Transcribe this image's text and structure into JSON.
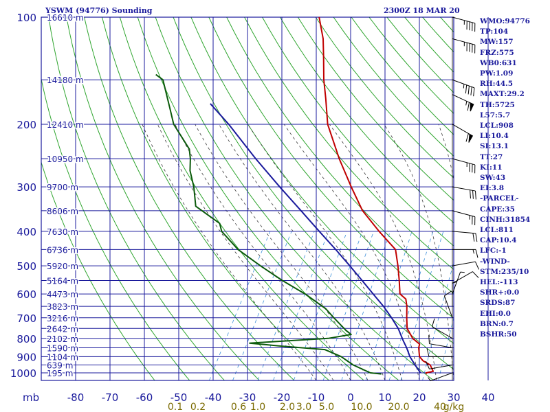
{
  "header": {
    "station": "YSWM (94776) Sounding",
    "time": "2300Z 18 MAR 20"
  },
  "stats": [
    "WMO:94776",
    "TP:104",
    "MW:157",
    "FRZ:575",
    "WB0:631",
    "PW:1.09",
    "RH:44.5",
    "MAXT:29.2",
    "TH:5725",
    "L57:5.7",
    "LCL:908",
    "LI:10.4",
    "SI:13.1",
    "TT:27",
    "KI:11",
    "SW:43",
    "EI:3.8",
    "-PARCEL-",
    "CAPE:35",
    "CINH:31854",
    "LCL:811",
    "CAP:10.4",
    "LFC:-1",
    "-WIND-",
    "STM:235/10",
    "HEL:-113",
    "SHR+:0.0",
    "SRDS:87",
    "EHI:0.0",
    "BRN:0.7",
    "BSHR:50"
  ],
  "colors": {
    "grid": "#1a1a9c",
    "dry_adiabat": "#2fa52f",
    "moist_adiabat": "#3a3a3a",
    "mixing_ratio": "#3b8fd9",
    "temperature": "#c00000",
    "dewpoint": "#0b5a0b",
    "parcel": "#1a1a9c",
    "wind": "#000000",
    "axis_label": "#1a1a9c",
    "mixing_label": "#7a6a00"
  },
  "chart_data": {
    "type": "line",
    "title": "YSWM (94776) Sounding",
    "xlabel": "",
    "ylabel": "mb",
    "x_ticks": [
      -80,
      -70,
      -60,
      -50,
      -40,
      -30,
      -20,
      -10,
      0,
      10,
      20,
      30,
      40
    ],
    "y_ticks": [
      100,
      200,
      300,
      400,
      500,
      600,
      700,
      800,
      900,
      1000
    ],
    "x_axis_unit_label": "mb",
    "mixing_ratio_labels": [
      "0.1",
      "0.2",
      "0.6",
      "1.0",
      "2.0",
      "3.0",
      "5.0",
      "10.0",
      "20.0",
      "40",
      "g/kg"
    ],
    "height_labels": [
      {
        "p": 100,
        "label": "16610 m"
      },
      {
        "p": 150,
        "label": "14180 m"
      },
      {
        "p": 200,
        "label": "12410 m"
      },
      {
        "p": 250,
        "label": "10950 m"
      },
      {
        "p": 300,
        "label": "9700 m"
      },
      {
        "p": 350,
        "label": "8606 m"
      },
      {
        "p": 400,
        "label": "7630 m"
      },
      {
        "p": 450,
        "label": "6736 m"
      },
      {
        "p": 500,
        "label": "5920 m"
      },
      {
        "p": 550,
        "label": "5164 m"
      },
      {
        "p": 600,
        "label": "4473 m"
      },
      {
        "p": 650,
        "label": "3823 m"
      },
      {
        "p": 700,
        "label": "3216 m"
      },
      {
        "p": 750,
        "label": "2642 m"
      },
      {
        "p": 800,
        "label": "2102 m"
      },
      {
        "p": 850,
        "label": "1590 m"
      },
      {
        "p": 900,
        "label": "1104 m"
      },
      {
        "p": 950,
        "label": "639 m"
      },
      {
        "p": 1000,
        "label": "195 m"
      }
    ],
    "series": [
      {
        "key": "temperature",
        "values": [
          [
            1007,
            21.0
          ],
          [
            1000,
            20.6
          ],
          [
            990,
            22.4
          ],
          [
            950,
            20.4
          ],
          [
            925,
            17.6
          ],
          [
            900,
            15.8
          ],
          [
            850,
            14.0
          ],
          [
            830,
            13.6
          ],
          [
            800,
            10.6
          ],
          [
            750,
            7.2
          ],
          [
            700,
            5.2
          ],
          [
            650,
            3.2
          ],
          [
            620,
            1.6
          ],
          [
            600,
            -1.0
          ],
          [
            550,
            -3.6
          ],
          [
            500,
            -6.6
          ],
          [
            450,
            -10.2
          ],
          [
            400,
            -18.2
          ],
          [
            350,
            -26.7
          ],
          [
            300,
            -34.2
          ],
          [
            250,
            -42.7
          ],
          [
            200,
            -52.2
          ],
          [
            170,
            -57.2
          ],
          [
            150,
            -61.2
          ],
          [
            130,
            -65.2
          ],
          [
            115,
            -68.7
          ],
          [
            100,
            -73.7
          ]
        ]
      },
      {
        "key": "dewpoint",
        "values": [
          [
            1007,
            7.8
          ],
          [
            1000,
            4.4
          ],
          [
            950,
            -2.0
          ],
          [
            900,
            -7.0
          ],
          [
            860,
            -13.0
          ],
          [
            840,
            -27.0
          ],
          [
            825,
            -36.0
          ],
          [
            800,
            -14.0
          ],
          [
            780,
            -8.0
          ],
          [
            760,
            -10.2
          ],
          [
            700,
            -16.0
          ],
          [
            660,
            -20.0
          ],
          [
            600,
            -28.6
          ],
          [
            550,
            -37.6
          ],
          [
            500,
            -46.6
          ],
          [
            450,
            -56.0
          ],
          [
            400,
            -64.0
          ],
          [
            380,
            -66.0
          ],
          [
            340,
            -76.0
          ],
          [
            300,
            -80.0
          ],
          [
            270,
            -84.0
          ],
          [
            250,
            -86.0
          ],
          [
            235,
            -88.0
          ],
          [
            200,
            -97.0
          ],
          [
            180,
            -101.0
          ],
          [
            150,
            -108.0
          ],
          [
            145,
            -111.0
          ]
        ]
      },
      {
        "key": "parcel",
        "values": [
          [
            1000,
            19.0
          ],
          [
            950,
            16.0
          ],
          [
            900,
            13.0
          ],
          [
            850,
            10.5
          ],
          [
            811,
            8.2
          ],
          [
            750,
            4.6
          ],
          [
            700,
            0.8
          ],
          [
            650,
            -3.6
          ],
          [
            600,
            -8.8
          ],
          [
            550,
            -14.4
          ],
          [
            500,
            -20.6
          ],
          [
            450,
            -27.6
          ],
          [
            400,
            -35.6
          ],
          [
            350,
            -44.6
          ],
          [
            300,
            -55.0
          ],
          [
            250,
            -67.0
          ],
          [
            200,
            -81.0
          ],
          [
            175,
            -90.0
          ]
        ]
      }
    ],
    "wind_barbs": [
      {
        "p": 100,
        "dir": 285,
        "spd": 45
      },
      {
        "p": 115,
        "dir": 285,
        "spd": 45
      },
      {
        "p": 150,
        "dir": 290,
        "spd": 45
      },
      {
        "p": 165,
        "dir": 295,
        "spd": 65
      },
      {
        "p": 200,
        "dir": 300,
        "spd": 60
      },
      {
        "p": 250,
        "dir": 285,
        "spd": 35
      },
      {
        "p": 300,
        "dir": 280,
        "spd": 30
      },
      {
        "p": 350,
        "dir": 285,
        "spd": 25
      },
      {
        "p": 400,
        "dir": 275,
        "spd": 20
      },
      {
        "p": 450,
        "dir": 270,
        "spd": 15
      },
      {
        "p": 500,
        "dir": 260,
        "spd": 10
      },
      {
        "p": 560,
        "dir": 240,
        "spd": 10
      },
      {
        "p": 600,
        "dir": 200,
        "spd": 5
      },
      {
        "p": 650,
        "dir": 180,
        "spd": 5
      },
      {
        "p": 700,
        "dir": 160,
        "spd": 10
      },
      {
        "p": 800,
        "dir": 120,
        "spd": 10
      },
      {
        "p": 850,
        "dir": 100,
        "spd": 10
      },
      {
        "p": 900,
        "dir": 90,
        "spd": 10
      },
      {
        "p": 950,
        "dir": 80,
        "spd": 10
      },
      {
        "p": 1000,
        "dir": 70,
        "spd": 5
      }
    ]
  }
}
